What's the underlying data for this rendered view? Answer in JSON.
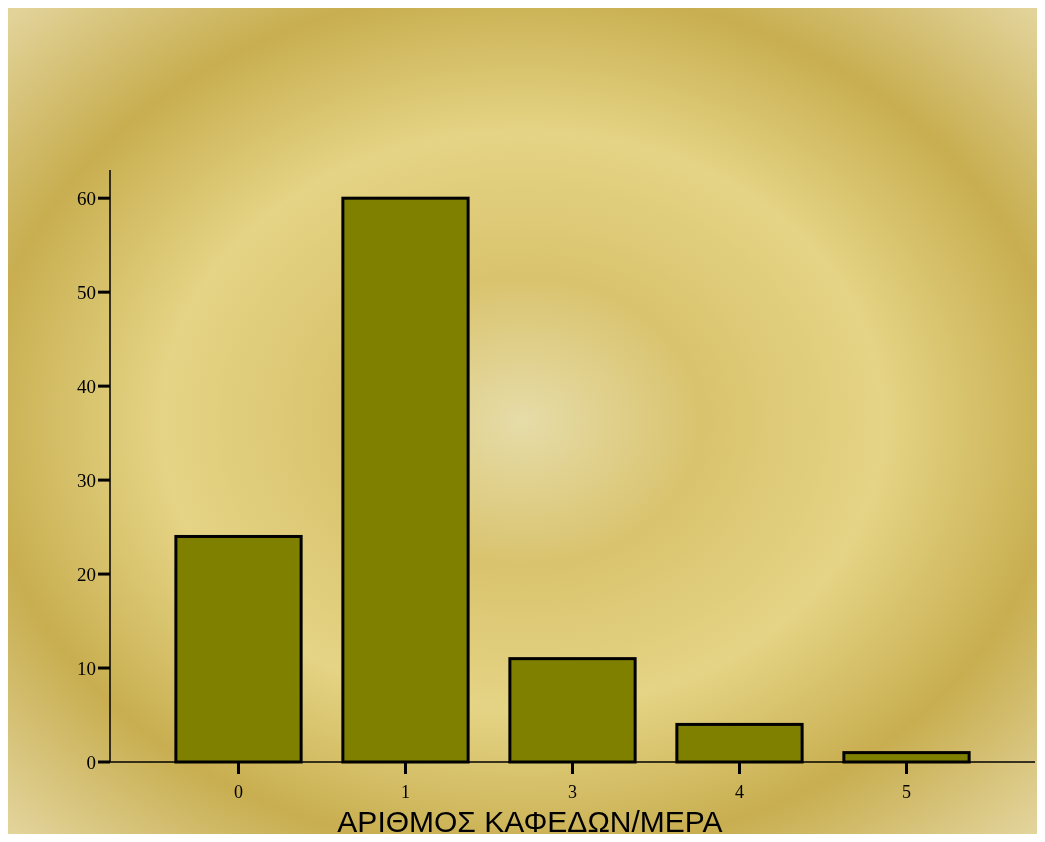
{
  "chart_data": {
    "type": "bar",
    "xlabel": "ΑΡΙΘΜΟΣ  ΚΑΦΕΔΩΝ/ΜΕΡΑ",
    "categories": [
      "0",
      "1",
      "3",
      "4",
      "5"
    ],
    "values": [
      24,
      60,
      11,
      4,
      1
    ],
    "color": "#7f7f00",
    "ylim": [
      0,
      63
    ],
    "yticks": [
      0,
      10,
      20,
      30,
      40,
      50,
      60
    ],
    "grid": false
  }
}
